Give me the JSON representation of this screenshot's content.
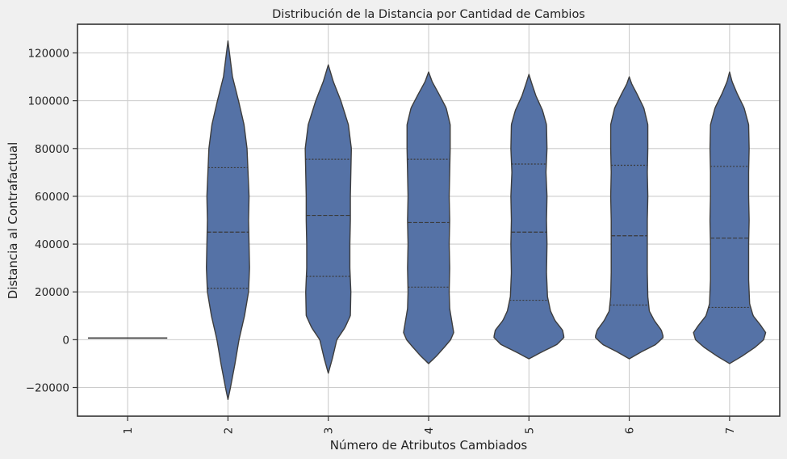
{
  "chart_data": {
    "type": "violin",
    "title": "Distribución de la Distancia por Cantidad de Cambios",
    "xlabel": "Número de Atributos Cambiados",
    "ylabel": "Distancia al Contrafactual",
    "categories": [
      "1",
      "2",
      "3",
      "4",
      "5",
      "6",
      "7"
    ],
    "ylim": [
      -32000,
      132000
    ],
    "yticks": [
      -20000,
      0,
      20000,
      40000,
      60000,
      80000,
      100000,
      120000
    ],
    "ytick_labels": [
      "−20000",
      "0",
      "20000",
      "40000",
      "60000",
      "80000",
      "100000",
      "120000"
    ],
    "grid": true,
    "colors": {
      "fill": "#5572a6",
      "edge": "#3d3d3d",
      "grid": "#cccccc",
      "axes": "#333333",
      "figure_bg": "#f0f0f0",
      "plot_bg": "#ffffff"
    },
    "violins": [
      {
        "category": "1",
        "min": 700,
        "max": 700,
        "q1": 700,
        "median": 700,
        "q3": 700,
        "profile": []
      },
      {
        "category": "2",
        "min": -25000,
        "max": 125000,
        "q1": 21500,
        "median": 45000,
        "q3": 72000,
        "profile": [
          [
            -25000,
            0.0
          ],
          [
            -20000,
            0.05
          ],
          [
            -10000,
            0.14
          ],
          [
            0,
            0.22
          ],
          [
            10000,
            0.33
          ],
          [
            20000,
            0.41
          ],
          [
            30000,
            0.43
          ],
          [
            40000,
            0.42
          ],
          [
            50000,
            0.41
          ],
          [
            60000,
            0.42
          ],
          [
            70000,
            0.4
          ],
          [
            80000,
            0.38
          ],
          [
            90000,
            0.32
          ],
          [
            100000,
            0.21
          ],
          [
            110000,
            0.09
          ],
          [
            120000,
            0.03
          ],
          [
            125000,
            0.0
          ]
        ]
      },
      {
        "category": "3",
        "min": -14000,
        "max": 115000,
        "q1": 26500,
        "median": 52000,
        "q3": 75500,
        "profile": [
          [
            -14000,
            0.0
          ],
          [
            -8000,
            0.08
          ],
          [
            0,
            0.17
          ],
          [
            5000,
            0.33
          ],
          [
            10000,
            0.44
          ],
          [
            20000,
            0.45
          ],
          [
            30000,
            0.43
          ],
          [
            40000,
            0.43
          ],
          [
            50000,
            0.44
          ],
          [
            60000,
            0.44
          ],
          [
            70000,
            0.45
          ],
          [
            80000,
            0.46
          ],
          [
            90000,
            0.4
          ],
          [
            100000,
            0.25
          ],
          [
            108000,
            0.1
          ],
          [
            115000,
            0.0
          ]
        ]
      },
      {
        "category": "4",
        "min": -10000,
        "max": 112000,
        "q1": 22000,
        "median": 49000,
        "q3": 75500,
        "profile": [
          [
            -10000,
            0.0
          ],
          [
            -7000,
            0.15
          ],
          [
            -3000,
            0.32
          ],
          [
            0,
            0.44
          ],
          [
            3000,
            0.5
          ],
          [
            8000,
            0.46
          ],
          [
            13000,
            0.42
          ],
          [
            20000,
            0.41
          ],
          [
            30000,
            0.42
          ],
          [
            40000,
            0.41
          ],
          [
            50000,
            0.42
          ],
          [
            60000,
            0.41
          ],
          [
            70000,
            0.42
          ],
          [
            80000,
            0.43
          ],
          [
            90000,
            0.43
          ],
          [
            97000,
            0.35
          ],
          [
            103000,
            0.2
          ],
          [
            108000,
            0.07
          ],
          [
            112000,
            0.0
          ]
        ]
      },
      {
        "category": "5",
        "min": -8000,
        "max": 111000,
        "q1": 16500,
        "median": 45000,
        "q3": 73500,
        "profile": [
          [
            -8000,
            0.0
          ],
          [
            -5000,
            0.27
          ],
          [
            -2000,
            0.56
          ],
          [
            1000,
            0.7
          ],
          [
            4000,
            0.67
          ],
          [
            8000,
            0.52
          ],
          [
            12000,
            0.43
          ],
          [
            18000,
            0.37
          ],
          [
            28000,
            0.35
          ],
          [
            40000,
            0.36
          ],
          [
            50000,
            0.35
          ],
          [
            60000,
            0.36
          ],
          [
            70000,
            0.34
          ],
          [
            80000,
            0.36
          ],
          [
            90000,
            0.35
          ],
          [
            96000,
            0.27
          ],
          [
            102000,
            0.14
          ],
          [
            107000,
            0.06
          ],
          [
            111000,
            0.0
          ]
        ]
      },
      {
        "category": "6",
        "min": -8000,
        "max": 110000,
        "q1": 14500,
        "median": 43500,
        "q3": 73000,
        "profile": [
          [
            -8000,
            0.0
          ],
          [
            -5000,
            0.25
          ],
          [
            -2000,
            0.53
          ],
          [
            1000,
            0.68
          ],
          [
            4000,
            0.64
          ],
          [
            8000,
            0.5
          ],
          [
            12000,
            0.4
          ],
          [
            18000,
            0.37
          ],
          [
            28000,
            0.36
          ],
          [
            40000,
            0.36
          ],
          [
            50000,
            0.36
          ],
          [
            60000,
            0.37
          ],
          [
            70000,
            0.36
          ],
          [
            80000,
            0.37
          ],
          [
            90000,
            0.37
          ],
          [
            97000,
            0.29
          ],
          [
            103000,
            0.15
          ],
          [
            107000,
            0.05
          ],
          [
            110000,
            0.0
          ]
        ]
      },
      {
        "category": "7",
        "min": -10000,
        "max": 112000,
        "q1": 13500,
        "median": 42500,
        "q3": 72500,
        "profile": [
          [
            -10000,
            0.0
          ],
          [
            -7000,
            0.24
          ],
          [
            -3000,
            0.52
          ],
          [
            0,
            0.68
          ],
          [
            3000,
            0.72
          ],
          [
            6000,
            0.62
          ],
          [
            10000,
            0.47
          ],
          [
            15000,
            0.4
          ],
          [
            25000,
            0.38
          ],
          [
            40000,
            0.38
          ],
          [
            50000,
            0.39
          ],
          [
            60000,
            0.38
          ],
          [
            70000,
            0.38
          ],
          [
            80000,
            0.39
          ],
          [
            90000,
            0.38
          ],
          [
            97000,
            0.29
          ],
          [
            103000,
            0.15
          ],
          [
            108000,
            0.05
          ],
          [
            112000,
            0.0
          ]
        ]
      }
    ]
  }
}
